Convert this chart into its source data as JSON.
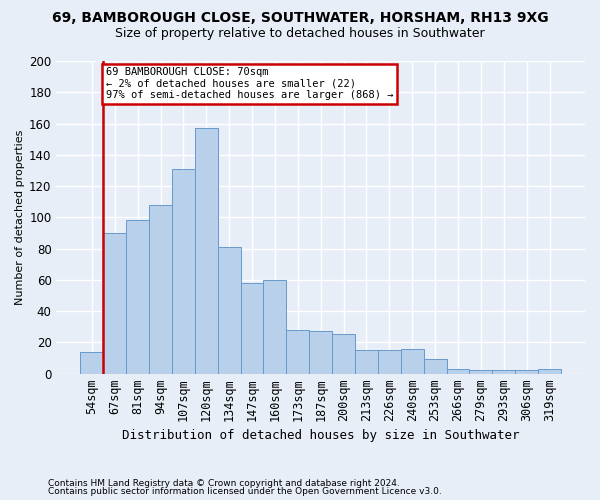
{
  "title1": "69, BAMBOROUGH CLOSE, SOUTHWATER, HORSHAM, RH13 9XG",
  "title2": "Size of property relative to detached houses in Southwater",
  "xlabel": "Distribution of detached houses by size in Southwater",
  "ylabel": "Number of detached properties",
  "bar_labels": [
    "54sqm",
    "67sqm",
    "81sqm",
    "94sqm",
    "107sqm",
    "120sqm",
    "134sqm",
    "147sqm",
    "160sqm",
    "173sqm",
    "187sqm",
    "200sqm",
    "213sqm",
    "226sqm",
    "240sqm",
    "253sqm",
    "266sqm",
    "279sqm",
    "293sqm",
    "306sqm",
    "319sqm"
  ],
  "bar_values": [
    14,
    90,
    98,
    108,
    131,
    157,
    81,
    58,
    60,
    28,
    27,
    25,
    15,
    15,
    16,
    9,
    3,
    2,
    2,
    2,
    3
  ],
  "bar_color": "#b8d0ea",
  "bar_edge_color": "#6699cc",
  "annotation_text": "69 BAMBOROUGH CLOSE: 70sqm\n← 2% of detached houses are smaller (22)\n97% of semi-detached houses are larger (868) →",
  "footer1": "Contains HM Land Registry data © Crown copyright and database right 2024.",
  "footer2": "Contains public sector information licensed under the Open Government Licence v3.0.",
  "bg_color": "#e8eef8",
  "grid_color": "#ffffff",
  "subject_line_color": "#cc0000",
  "ylim": [
    0,
    200
  ],
  "yticks": [
    0,
    20,
    40,
    60,
    80,
    100,
    120,
    140,
    160,
    180,
    200
  ]
}
